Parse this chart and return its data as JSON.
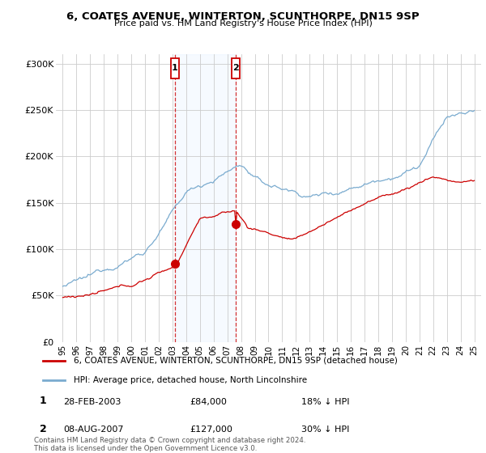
{
  "title_line1": "6, COATES AVENUE, WINTERTON, SCUNTHORPE, DN15 9SP",
  "subtitle": "Price paid vs. HM Land Registry's House Price Index (HPI)",
  "legend_line1": "6, COATES AVENUE, WINTERTON, SCUNTHORPE, DN15 9SP (detached house)",
  "legend_line2": "HPI: Average price, detached house, North Lincolnshire",
  "transaction1_date": "28-FEB-2003",
  "transaction1_price": "£84,000",
  "transaction1_hpi": "18% ↓ HPI",
  "transaction2_date": "08-AUG-2007",
  "transaction2_price": "£127,000",
  "transaction2_hpi": "30% ↓ HPI",
  "footnote": "Contains HM Land Registry data © Crown copyright and database right 2024.\nThis data is licensed under the Open Government Licence v3.0.",
  "background_color": "#ffffff",
  "plot_bg_color": "#ffffff",
  "grid_color": "#cccccc",
  "hpi_color": "#7aabcf",
  "price_color": "#cc0000",
  "shade_color": "#ddeeff",
  "transaction1_year": 2003.17,
  "transaction2_year": 2007.6,
  "ylim": [
    0,
    310000
  ],
  "yticks": [
    0,
    50000,
    100000,
    150000,
    200000,
    250000,
    300000
  ],
  "ytick_labels": [
    "£0",
    "£50K",
    "£100K",
    "£150K",
    "£200K",
    "£250K",
    "£300K"
  ]
}
